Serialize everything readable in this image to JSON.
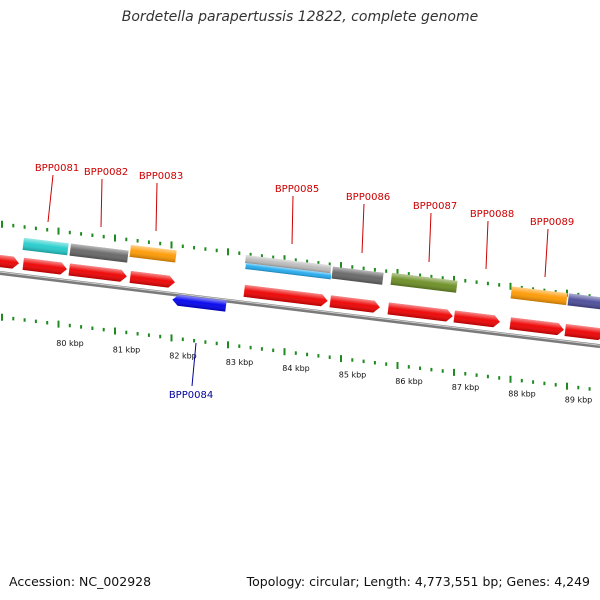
{
  "title": "Bordetella parapertussis 12822, complete genome",
  "footer": {
    "accession": "Accession: NC_002928",
    "summary": "Topology: circular; Length: 4,773,551 bp; Genes: 4,249"
  },
  "colors": {
    "label_top": "#cc0000",
    "label_bottom": "#000099",
    "tick": "#1f8a1f",
    "backbone": "#7a7a7a",
    "red": "#ee0000",
    "blue": "#0000ee",
    "cyan": "#22cccc",
    "sky": "#22aaee",
    "gray": "#666666",
    "lightgray": "#bbbbbb",
    "orange": "#ff9900",
    "olive": "#6b8e23",
    "purple": "#4b4b9a"
  },
  "map": {
    "kbp_labels": [
      "80 kbp",
      "81 kbp",
      "82 kbp",
      "83 kbp",
      "84 kbp",
      "85 kbp",
      "86 kbp",
      "87 kbp",
      "88 kbp",
      "89 kbp"
    ],
    "top_labels": [
      "BPP0081",
      "BPP0082",
      "BPP0083",
      "BPP0085",
      "BPP0086",
      "BPP0087",
      "BPP0088",
      "BPP0089"
    ],
    "bottom_labels": [
      "BPP0084"
    ]
  }
}
